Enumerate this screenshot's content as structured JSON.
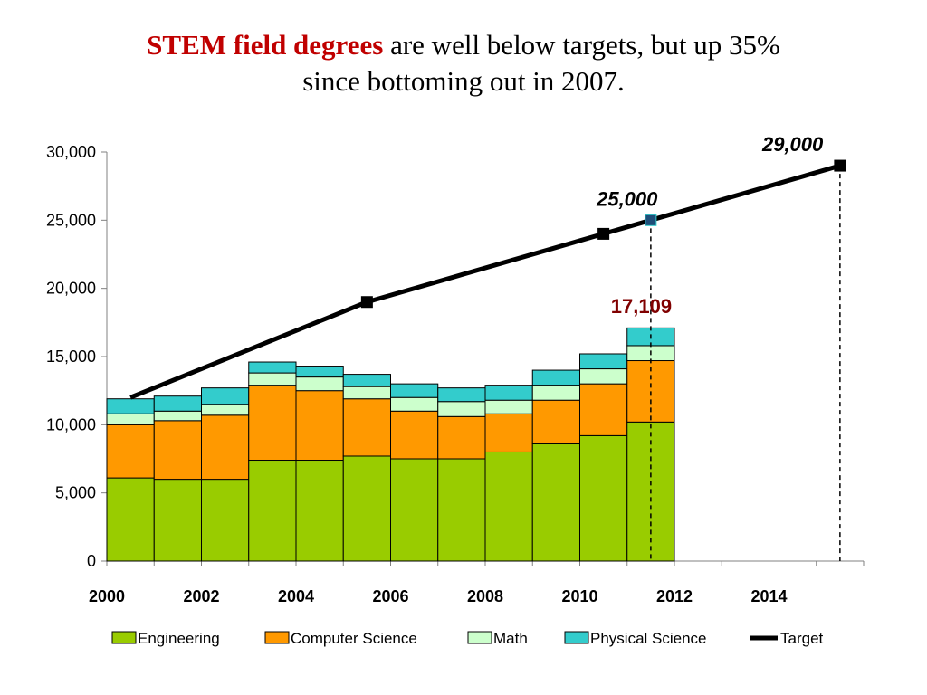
{
  "title": {
    "highlight": "STEM field degrees",
    "rest_line1": " are well below targets, but up 35%",
    "line2": "since bottoming out in 2007."
  },
  "chart_data": {
    "type": "bar",
    "stacked": true,
    "categories": [
      "2000",
      "2001",
      "2002",
      "2003",
      "2004",
      "2005",
      "2006",
      "2007",
      "2008",
      "2009",
      "2010",
      "2011"
    ],
    "x_tick_labels": [
      "2000",
      "2002",
      "2004",
      "2006",
      "2008",
      "2010",
      "2012",
      "2014"
    ],
    "xlim": [
      2000,
      2016
    ],
    "ylim": [
      0,
      30000
    ],
    "y_ticks": [
      0,
      5000,
      10000,
      15000,
      20000,
      25000,
      30000
    ],
    "y_tick_labels": [
      "0",
      "5,000",
      "10,000",
      "15,000",
      "20,000",
      "25,000",
      "30,000"
    ],
    "grid": false,
    "legend_position": "bottom",
    "series": [
      {
        "name": "Engineering",
        "color": "#99cc00",
        "values": [
          6100,
          6000,
          6000,
          7400,
          7400,
          7700,
          7500,
          7500,
          8000,
          8600,
          9200,
          10200
        ]
      },
      {
        "name": "Computer Science",
        "color": "#ff9900",
        "values": [
          3900,
          4300,
          4700,
          5500,
          5100,
          4200,
          3500,
          3100,
          2800,
          3200,
          3800,
          4500
        ]
      },
      {
        "name": "Math",
        "color": "#ccffcc",
        "values": [
          800,
          700,
          800,
          900,
          1000,
          900,
          1000,
          1100,
          1000,
          1100,
          1100,
          1100
        ]
      },
      {
        "name": "Physical Science",
        "color": "#33cccc",
        "values": [
          1100,
          1100,
          1200,
          800,
          800,
          900,
          1000,
          1000,
          1100,
          1100,
          1100,
          1300
        ]
      }
    ],
    "target": {
      "name": "Target",
      "color": "#000000",
      "points": [
        {
          "x": 2000.5,
          "y": 12000
        },
        {
          "x": 2005.5,
          "y": 19000
        },
        {
          "x": 2010.5,
          "y": 24000
        },
        {
          "x": 2011.5,
          "y": 25000
        },
        {
          "x": 2015.5,
          "y": 29000
        }
      ]
    },
    "annotations": [
      {
        "text": "29,000",
        "x": 2014.5,
        "y": 29000,
        "color": "#000000",
        "italic": true,
        "dashed_line": true
      },
      {
        "text": "25,000",
        "x": 2011.0,
        "y": 25000,
        "color": "#000000",
        "italic": true,
        "dashed_line": true
      },
      {
        "text": "17,109",
        "x": 2011.3,
        "y": 17109,
        "color": "#800000",
        "italic": false,
        "dashed_line": false
      }
    ]
  }
}
